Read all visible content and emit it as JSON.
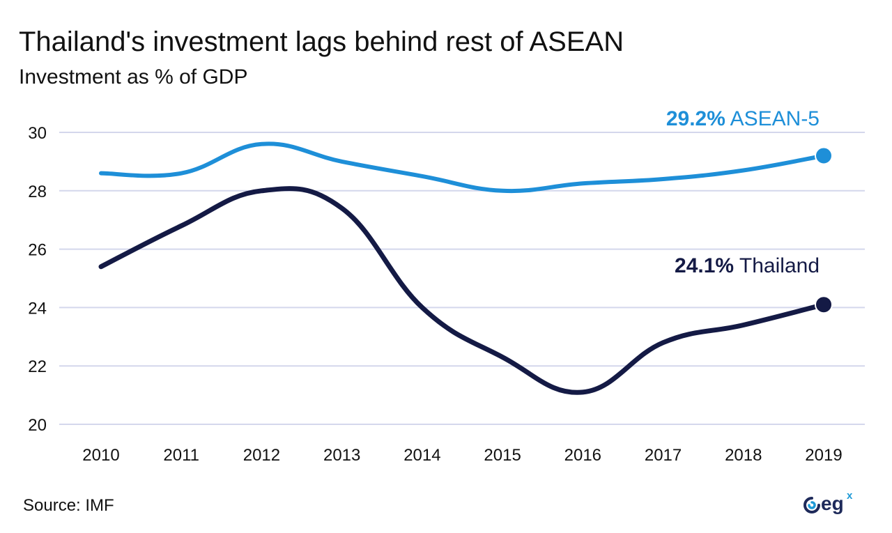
{
  "chart_data": {
    "type": "line",
    "title": "Thailand's investment lags behind rest of ASEAN",
    "subtitle": "Investment as % of GDP",
    "xlabel": "",
    "ylabel": "",
    "x": [
      "2010",
      "2011",
      "2012",
      "2013",
      "2014",
      "2015",
      "2016",
      "2017",
      "2018",
      "2019"
    ],
    "ylim": [
      20,
      30
    ],
    "yticks": [
      "20",
      "22",
      "24",
      "26",
      "28",
      "30"
    ],
    "grid": "horizontal",
    "legend": "none",
    "series": [
      {
        "name": "ASEAN-5",
        "color": "#1e8fd8",
        "values": [
          28.6,
          28.6,
          29.6,
          29.0,
          28.5,
          28.0,
          28.25,
          28.4,
          28.7,
          29.2
        ],
        "end_label_value": "29.2%",
        "end_label_name": "ASEAN-5"
      },
      {
        "name": "Thailand",
        "color": "#141a45",
        "values": [
          25.4,
          26.8,
          28.0,
          27.4,
          24.0,
          22.3,
          21.1,
          22.8,
          23.4,
          24.1
        ],
        "end_label_value": "24.1%",
        "end_label_name": "Thailand"
      }
    ]
  },
  "source": "Source: IMF",
  "logo": {
    "text": "eg",
    "superscript": "x"
  },
  "colors": {
    "grid": "#d4d7ec",
    "text": "#111111"
  }
}
